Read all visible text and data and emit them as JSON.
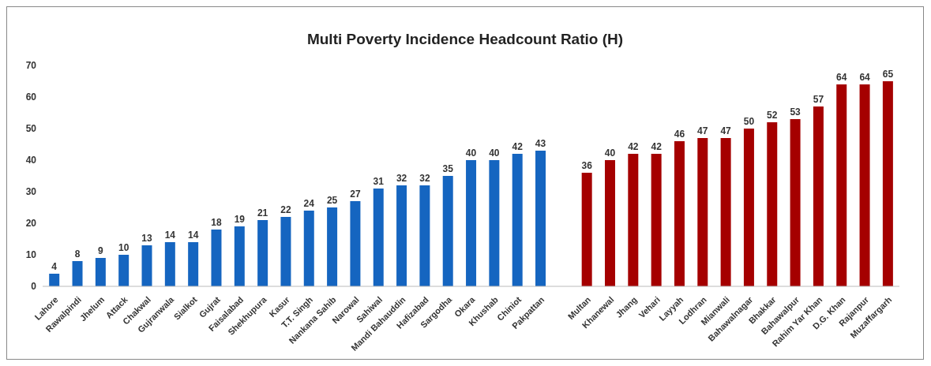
{
  "chart_data": {
    "type": "bar",
    "title": "Multi Poverty Incidence Headcount Ratio (H)",
    "categories": [
      "Lahore",
      "Rawalpindi",
      "Jhelum",
      "Attack",
      "Chakwal",
      "Gujranwala",
      "Sialkot",
      "Gujrat",
      "Faisalabad",
      "Shekhupura",
      "Kasur",
      "T.T. Singh",
      "Nankana Sahib",
      "Narowal",
      "Sahiwal",
      "Mandi Bahauddin",
      "Hafizabad",
      "Sargodha",
      "Okara",
      "Khushab",
      "Chiniot",
      "Pakpattan",
      null,
      "Multan",
      "Khanewal",
      "Jhang",
      "Vehari",
      "Layyah",
      "Lodhran",
      "Mianwali",
      "Bahawalnagar",
      "Bhakkar",
      "Bahawalpur",
      "Rahim Yar Khan",
      "D.G. Khan",
      "Rajanpur",
      "Muzaffargarh"
    ],
    "values": [
      4,
      8,
      9,
      10,
      13,
      14,
      14,
      18,
      19,
      21,
      22,
      24,
      25,
      27,
      31,
      32,
      32,
      35,
      40,
      40,
      42,
      43,
      null,
      36,
      40,
      42,
      42,
      46,
      47,
      47,
      50,
      52,
      53,
      57,
      64,
      64,
      65
    ],
    "colors": [
      "#1565c0",
      "#1565c0",
      "#1565c0",
      "#1565c0",
      "#1565c0",
      "#1565c0",
      "#1565c0",
      "#1565c0",
      "#1565c0",
      "#1565c0",
      "#1565c0",
      "#1565c0",
      "#1565c0",
      "#1565c0",
      "#1565c0",
      "#1565c0",
      "#1565c0",
      "#1565c0",
      "#1565c0",
      "#1565c0",
      "#1565c0",
      "#1565c0",
      null,
      "#a50000",
      "#a50000",
      "#a50000",
      "#a50000",
      "#a50000",
      "#a50000",
      "#a50000",
      "#a50000",
      "#a50000",
      "#a50000",
      "#a50000",
      "#a50000",
      "#a50000",
      "#a50000"
    ],
    "ylim": [
      0,
      70
    ],
    "yticks": [
      0,
      10,
      20,
      30,
      40,
      50,
      60,
      70
    ],
    "grid": false,
    "data_labels": true
  }
}
